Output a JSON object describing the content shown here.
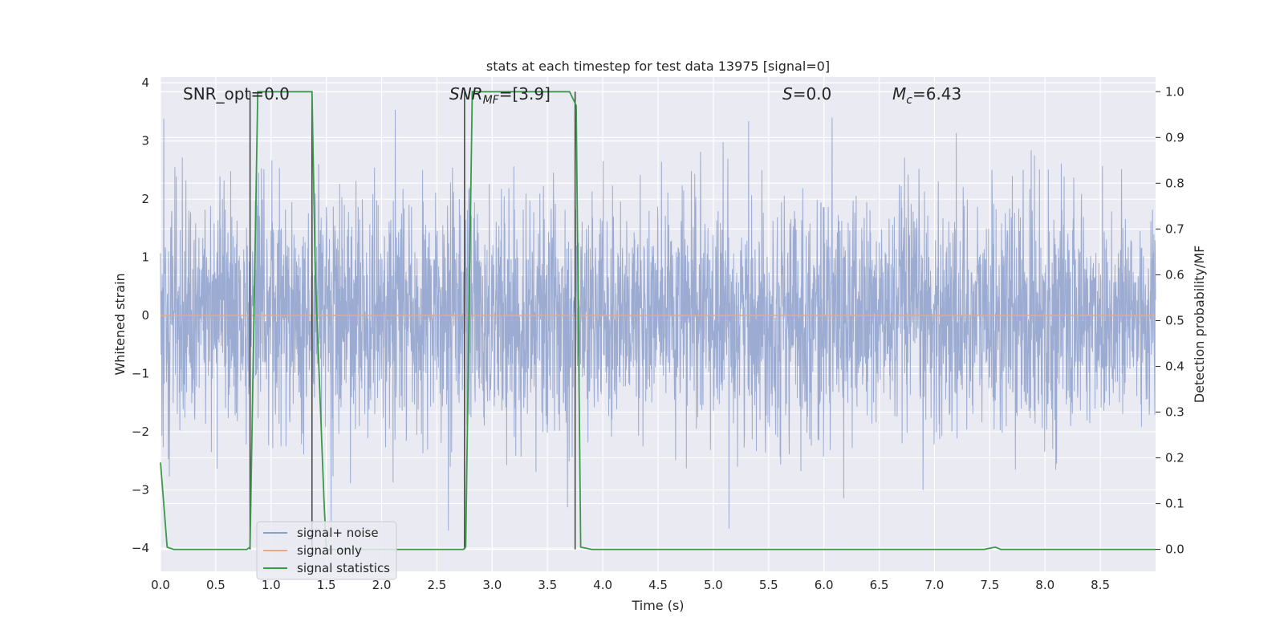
{
  "chart_data": {
    "type": "line",
    "title": "stats at each timestep for test data 13975 [signal=0]",
    "xlabel": "Time (s)",
    "ylabel": "Whitened strain",
    "y2label": "Detection probability/MF",
    "xlim": [
      0,
      9.0
    ],
    "ylim": [
      -4.4,
      4.1
    ],
    "y2lim": [
      -0.048,
      1.032
    ],
    "xticks": [
      "0.0",
      "0.5",
      "1.0",
      "1.5",
      "2.0",
      "2.5",
      "3.0",
      "3.5",
      "4.0",
      "4.5",
      "5.0",
      "5.5",
      "6.0",
      "6.5",
      "7.0",
      "7.5",
      "8.0",
      "8.5"
    ],
    "yticks": [
      "4",
      "3",
      "2",
      "1",
      "0",
      "−1",
      "−2",
      "−3",
      "−4"
    ],
    "y2ticks": [
      "1.0",
      "0.9",
      "0.8",
      "0.7",
      "0.6",
      "0.5",
      "0.4",
      "0.3",
      "0.2",
      "0.1",
      "0.0"
    ],
    "annotations": {
      "snr_opt": "SNR_opt=0.0",
      "snr_mf_base": "SNR",
      "snr_mf_sub": "MF",
      "snr_mf_value": "=[3.9]",
      "s_sym": "S",
      "s_value": "=0.0",
      "mc_sym": "M",
      "mc_sub": "c",
      "mc_value": "=6.43"
    },
    "legend": {
      "placement": "lower-left",
      "entries": [
        "signal+ noise",
        "signal only",
        "signal statistics"
      ]
    },
    "series": [
      {
        "name": "signal+ noise",
        "kind": "noise",
        "color": "#8da0cb",
        "sigma": 1.0,
        "peak_max": 3.8,
        "peak_min": -3.7
      },
      {
        "name": "signal only",
        "kind": "flat",
        "color": "#e8a98a",
        "value": 0
      },
      {
        "name": "signal statistics",
        "color": "#3a9a4a",
        "axis": "right",
        "x": [
          0.0,
          0.06,
          0.12,
          0.78,
          0.81,
          0.88,
          0.92,
          1.3,
          1.37,
          1.4,
          1.48,
          1.5,
          2.74,
          2.76,
          2.82,
          2.86,
          3.7,
          3.76,
          3.8,
          3.9,
          7.45,
          7.55,
          7.6,
          7.7,
          9.0
        ],
        "y": [
          0.19,
          0.005,
          0.0,
          0.0,
          0.005,
          1.0,
          1.0,
          1.0,
          1.0,
          0.6,
          0.1,
          0.0,
          0.0,
          0.005,
          1.0,
          1.0,
          1.0,
          0.97,
          0.005,
          0.0,
          0.0,
          0.005,
          0.0,
          0.0,
          0.0
        ]
      },
      {
        "name": "",
        "kind": "vlines",
        "color": "#4a4a4a",
        "x": [
          0.81,
          1.37,
          2.75,
          3.75
        ],
        "y2": [
          0.0,
          1.0
        ]
      }
    ]
  },
  "colors": {
    "plot_bg": "#eaeaf2",
    "grid": "#ffffff",
    "noise": "#8da0cb",
    "signal_only": "#e8a98a",
    "statistics": "#3a9a4a",
    "markers": "#4a4a4a"
  }
}
